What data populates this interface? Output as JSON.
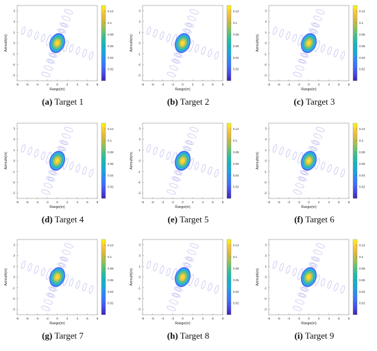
{
  "chart_data": {
    "type": "heatmap",
    "layout": "3x3 grid",
    "x": {
      "label": "Range(m)",
      "lim": [
        -8,
        8
      ],
      "ticks": [
        -8,
        -6,
        -4,
        -2,
        0,
        2,
        4,
        6,
        8
      ]
    },
    "y": {
      "label": "Azimuth(m)",
      "lim": [
        -3.5,
        3.5
      ],
      "ticks": [
        -3,
        -2,
        -1,
        0,
        1,
        2,
        3
      ]
    },
    "colorbar": {
      "colormap": "parula",
      "range": [
        0,
        0.13
      ],
      "ticks": [
        "0.02",
        "0.04",
        "0.06",
        "0.08",
        "0.1",
        "0.12"
      ]
    },
    "peak_value": 0.12,
    "panels": [
      {
        "letter": "(a)",
        "title": "Target 1"
      },
      {
        "letter": "(b)",
        "title": "Target 2"
      },
      {
        "letter": "(c)",
        "title": "Target 3"
      },
      {
        "letter": "(d)",
        "title": "Target 4"
      },
      {
        "letter": "(e)",
        "title": "Target 5"
      },
      {
        "letter": "(f)",
        "title": "Target 6"
      },
      {
        "letter": "(g)",
        "title": "Target 7"
      },
      {
        "letter": "(h)",
        "title": "Target 8"
      },
      {
        "letter": "(i)",
        "title": "Target 9"
      }
    ]
  }
}
